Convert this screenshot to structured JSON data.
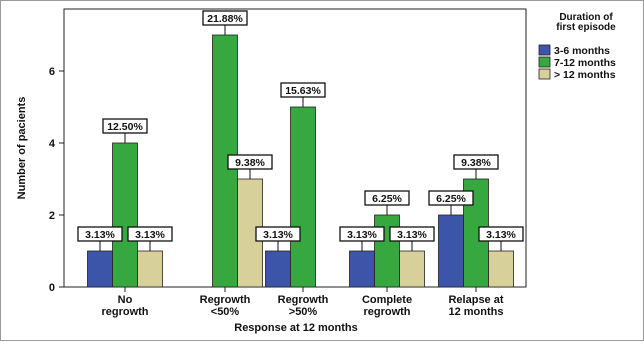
{
  "chart_data": {
    "type": "bar",
    "xlabel": "Response at 12 months",
    "ylabel": "Number of pacients",
    "ylim": [
      0,
      7.3
    ],
    "yticks": [
      0,
      2,
      4,
      6
    ],
    "grid": false,
    "legend_position": "top-right",
    "legend_title": [
      "Duration of",
      "first episode"
    ],
    "categories": [
      [
        "No",
        "regrowth"
      ],
      [
        "Regrowth",
        "<50%"
      ],
      [
        "Regrowth",
        ">50%"
      ],
      [
        "Complete",
        "regrowth"
      ],
      [
        "Relapse at",
        "12 months"
      ]
    ],
    "series": [
      {
        "name": "3-6 months",
        "color": "#3d55a8",
        "values": [
          1,
          0,
          1,
          1,
          2
        ],
        "labels": [
          "3.13%",
          "",
          "3.13%",
          "3.13%",
          "6.25%"
        ]
      },
      {
        "name": "7-12 months",
        "color": "#36a83f",
        "values": [
          4,
          7,
          5,
          2,
          3
        ],
        "labels": [
          "12.50%",
          "21.88%",
          "15.63%",
          "6.25%",
          "9.38%"
        ]
      },
      {
        "name": "> 12 months",
        "color": "#d8d09a",
        "values": [
          1,
          3,
          0,
          1,
          1
        ],
        "labels": [
          "3.13%",
          "9.38%",
          "",
          "3.13%",
          "3.13%"
        ]
      }
    ]
  }
}
